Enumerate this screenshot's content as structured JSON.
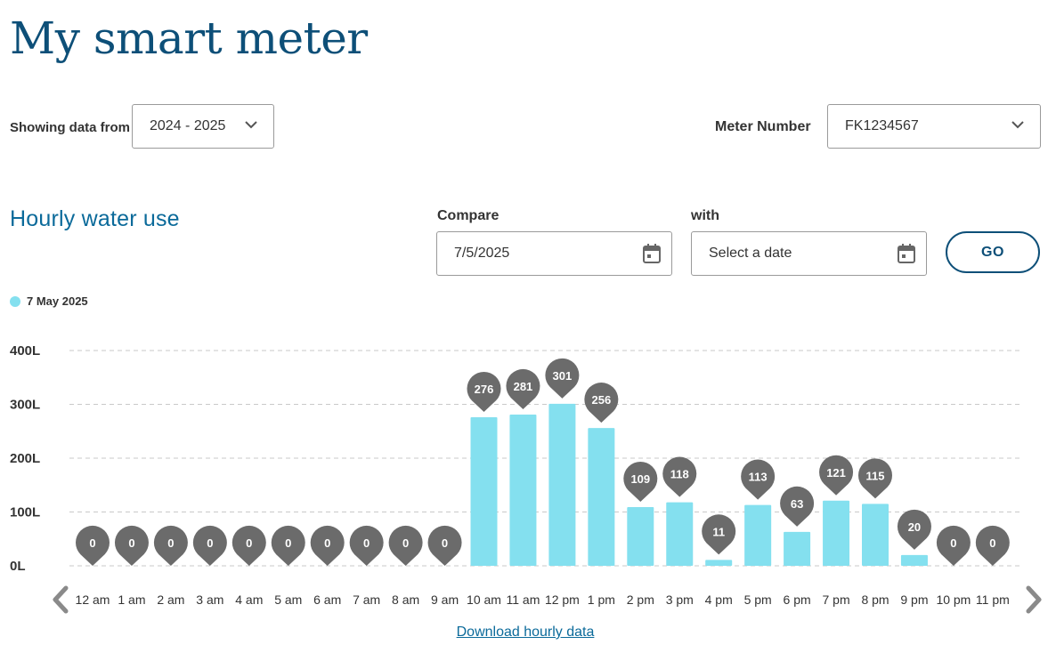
{
  "page": {
    "title": "My smart meter"
  },
  "filters": {
    "showing_label": "Showing data from",
    "period_value": "2024 - 2025",
    "meter_label": "Meter Number",
    "meter_value": "FK1234567",
    "chevron_icon": "chevron-down-icon"
  },
  "section": {
    "title": "Hourly water use"
  },
  "compare": {
    "compare_label": "Compare",
    "compare_value": "7/5/2025",
    "with_label": "with",
    "with_placeholder": "Select a date",
    "go_label": "GO",
    "calendar_icon": "calendar-icon"
  },
  "legend": {
    "label": "7 May 2025",
    "color": "#84e0ef"
  },
  "chart_data": {
    "type": "bar",
    "categories": [
      "12 am",
      "1 am",
      "2 am",
      "3 am",
      "4 am",
      "5 am",
      "6 am",
      "7 am",
      "8 am",
      "9 am",
      "10 am",
      "11 am",
      "12 pm",
      "1 pm",
      "2 pm",
      "3 pm",
      "4 pm",
      "5 pm",
      "6 pm",
      "7 pm",
      "8 pm",
      "9 pm",
      "10 pm",
      "11 pm"
    ],
    "series": [
      {
        "name": "7 May 2025",
        "values": [
          0,
          0,
          0,
          0,
          0,
          0,
          0,
          0,
          0,
          0,
          276,
          281,
          301,
          256,
          109,
          118,
          11,
          113,
          63,
          121,
          115,
          20,
          0,
          0
        ],
        "color": "#84e0ef"
      }
    ],
    "y_ticks": [
      "0L",
      "100L",
      "200L",
      "300L",
      "400L"
    ],
    "ylim": [
      0,
      400
    ],
    "grid": true,
    "bar_color": "#84e0ef",
    "marker_color": "#6b6b6b"
  },
  "nav": {
    "prev_icon": "chevron-left-icon",
    "next_icon": "chevron-right-icon"
  },
  "download": {
    "label": "Download hourly data"
  }
}
